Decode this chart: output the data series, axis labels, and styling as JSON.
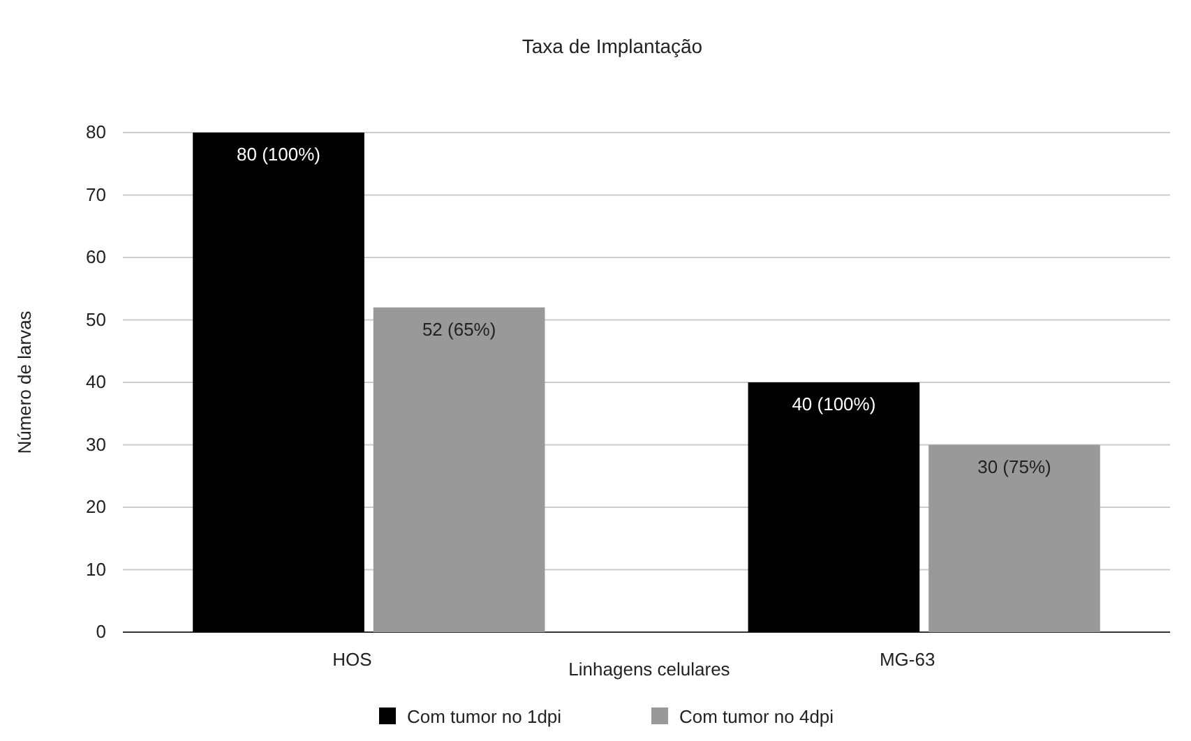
{
  "chart_data": {
    "type": "bar",
    "title": "Taxa de Implantação",
    "xlabel": "Linhagens celulares",
    "ylabel": "Número de larvas",
    "categories": [
      "HOS",
      "MG-63"
    ],
    "series": [
      {
        "name": "Com tumor no 1dpi",
        "color": "#000000",
        "values": [
          80,
          40
        ],
        "value_labels": [
          "80 (100%)",
          "40 (100%)"
        ]
      },
      {
        "name": "Com tumor no 4dpi",
        "color": "#999999",
        "values": [
          52,
          30
        ],
        "value_labels": [
          "52 (65%)",
          "30 (75%)"
        ]
      }
    ],
    "ylim": [
      0,
      80
    ],
    "yticks": [
      0,
      10,
      20,
      30,
      40,
      50,
      60,
      70,
      80
    ],
    "grid": "y",
    "legend": "bottom"
  }
}
